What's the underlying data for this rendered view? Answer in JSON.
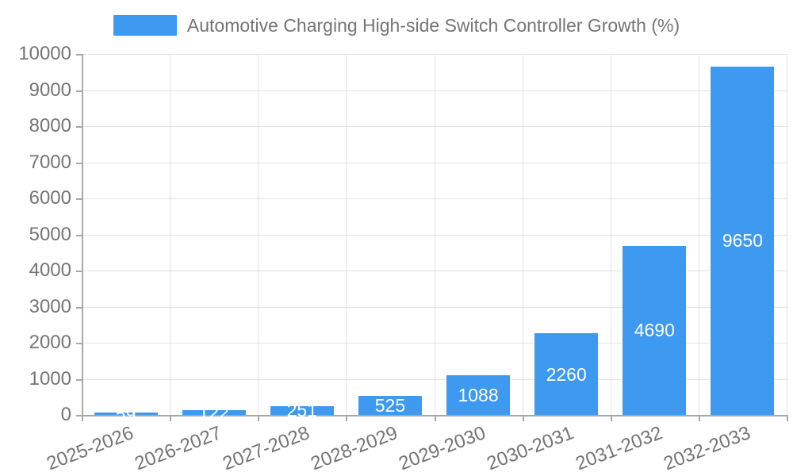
{
  "header": {
    "title": "Automotive Charging High-side Switch Controller Growth (%)"
  },
  "chart_data": {
    "type": "bar",
    "title": "Automotive Charging High-side Switch Controller Growth (%)",
    "categories": [
      "2025-2026",
      "2026-2027",
      "2027-2028",
      "2028-2029",
      "2029-2030",
      "2030-2031",
      "2031-2032",
      "2032-2033"
    ],
    "values": [
      59,
      122,
      251,
      525,
      1088,
      2260,
      4690,
      9650
    ],
    "value_labels": [
      "59",
      "122",
      "251",
      "525",
      "1088",
      "2260",
      "4690",
      "9650"
    ],
    "ytick_labels": [
      "0",
      "1000",
      "2000",
      "3000",
      "4000",
      "5000",
      "6000",
      "7000",
      "8000",
      "9000",
      "10000"
    ],
    "ylim": [
      0,
      10000
    ],
    "ytick_step": 1000,
    "xlabel": "",
    "ylabel": "",
    "grid": true,
    "legend_position": "top",
    "legend_label": "Automotive Charging High-side Switch Controller Growth (%)",
    "colors": {
      "bar": "#3d9af0",
      "axis": "#a8a8a8",
      "grid": "#e3e3e3",
      "text": "#757575",
      "bar_label": "#ffffff",
      "background": "#ffffff"
    }
  }
}
